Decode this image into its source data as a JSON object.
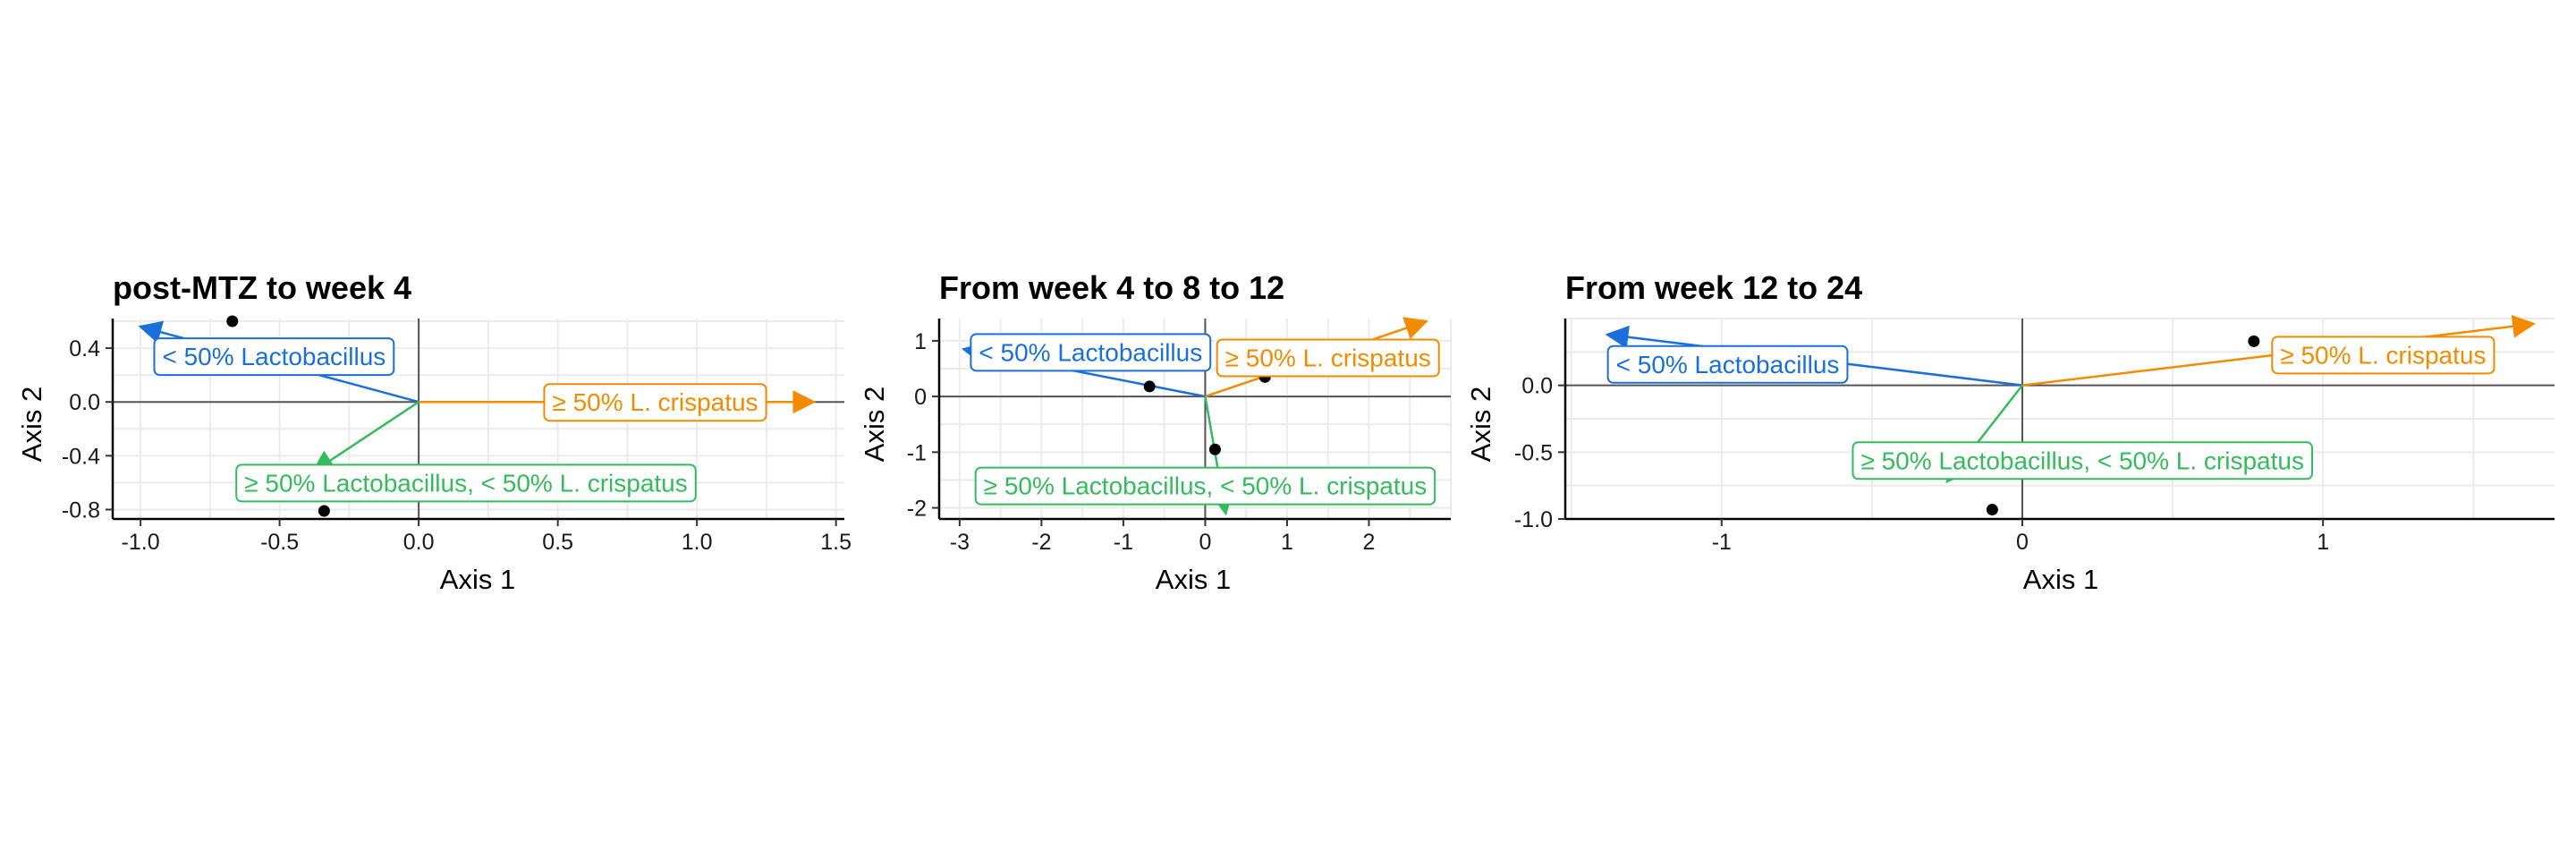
{
  "colors": {
    "low_lacto": "#1a6fdb",
    "high_crispatus": "#f28b00",
    "high_lacto_low_crispatus": "#33bb5c",
    "points": "#000000",
    "grid": "#ebebeb",
    "zero_line": "#555555"
  },
  "chart_data": [
    {
      "type": "scatter",
      "title": "post-MTZ to week 4",
      "xlabel": "Axis 1",
      "ylabel": "Axis 2",
      "xlim": [
        -1.1,
        1.53
      ],
      "ylim": [
        -0.87,
        0.62
      ],
      "xticks": [
        -1.0,
        -0.5,
        0.0,
        0.5,
        1.0,
        1.5
      ],
      "xtick_labels": [
        "-1.0",
        "-0.5",
        "0.0",
        "0.5",
        "1.0",
        "1.5"
      ],
      "yticks": [
        -0.8,
        -0.4,
        0.0,
        0.4
      ],
      "ytick_labels": [
        "-0.8",
        "-0.4",
        "0.0",
        "0.4"
      ],
      "grid": true,
      "points": [
        {
          "x": -0.67,
          "y": 0.6
        },
        {
          "x": -0.34,
          "y": -0.81
        }
      ],
      "arrows": [
        {
          "group": "low_lacto",
          "label": "< 50% Lactobacillus",
          "x": -1.0,
          "y": 0.56,
          "label_x": -0.52,
          "label_y": 0.34
        },
        {
          "group": "high_crispatus",
          "label": "≥ 50% L. crispatus",
          "x": 1.42,
          "y": 0.0,
          "label_x": 0.85,
          "label_y": 0.0
        },
        {
          "group": "high_lacto_low_crispatus",
          "label": "≥ 50% Lactobacillus, < 50% L. crispatus",
          "x": -0.38,
          "y": -0.52,
          "label_x": 0.17,
          "label_y": -0.6
        }
      ]
    },
    {
      "type": "scatter",
      "title": "From week 4 to 8 to 12",
      "xlabel": "Axis 1",
      "ylabel": "Axis 2",
      "xlim": [
        -3.25,
        3.0
      ],
      "ylim": [
        -2.2,
        1.4
      ],
      "xticks": [
        -3,
        -2,
        -1,
        0,
        1,
        2
      ],
      "xtick_labels": [
        "-3",
        "-2",
        "-1",
        "0",
        "1",
        "2"
      ],
      "yticks": [
        -2,
        -1,
        0,
        1
      ],
      "ytick_labels": [
        "-2",
        "-1",
        "0",
        "1"
      ],
      "grid": true,
      "points": [
        {
          "x": -0.68,
          "y": 0.18
        },
        {
          "x": 0.73,
          "y": 0.35
        },
        {
          "x": 0.12,
          "y": -0.95
        }
      ],
      "arrows": [
        {
          "group": "low_lacto",
          "label": "< 50% Lactobacillus",
          "x": -2.95,
          "y": 0.85,
          "label_x": -1.4,
          "label_y": 0.8
        },
        {
          "group": "high_crispatus",
          "label": "≥ 50% L. crispatus",
          "x": 2.7,
          "y": 1.35,
          "label_x": 1.5,
          "label_y": 0.7
        },
        {
          "group": "high_lacto_low_crispatus",
          "label": "≥ 50% Lactobacillus, < 50% L. crispatus",
          "x": 0.25,
          "y": -2.1,
          "label_x": 0.0,
          "label_y": -1.6
        }
      ]
    },
    {
      "type": "scatter",
      "title": "From week 12 to 24",
      "xlabel": "Axis 1",
      "ylabel": "Axis 2",
      "xlim": [
        -1.52,
        1.77
      ],
      "ylim": [
        -1.0,
        0.5
      ],
      "xticks": [
        -1,
        0,
        1
      ],
      "xtick_labels": [
        "-1",
        "0",
        "1"
      ],
      "yticks": [
        -1.0,
        -0.5,
        0.0
      ],
      "ytick_labels": [
        "-1.0",
        "-0.5",
        "0.0"
      ],
      "grid": true,
      "points": [
        {
          "x": 0.77,
          "y": 0.33
        },
        {
          "x": -0.1,
          "y": -0.93
        }
      ],
      "arrows": [
        {
          "group": "low_lacto",
          "label": "< 50% Lactobacillus",
          "x": -1.38,
          "y": 0.38,
          "label_x": -0.98,
          "label_y": 0.16
        },
        {
          "group": "high_crispatus",
          "label": "≥ 50% L. crispatus",
          "x": 1.7,
          "y": 0.46,
          "label_x": 1.2,
          "label_y": 0.23
        },
        {
          "group": "high_lacto_low_crispatus",
          "label": "≥ 50% Lactobacillus, < 50% L. crispatus",
          "x": -0.25,
          "y": -0.72,
          "label_x": 0.2,
          "label_y": -0.56
        }
      ]
    }
  ]
}
